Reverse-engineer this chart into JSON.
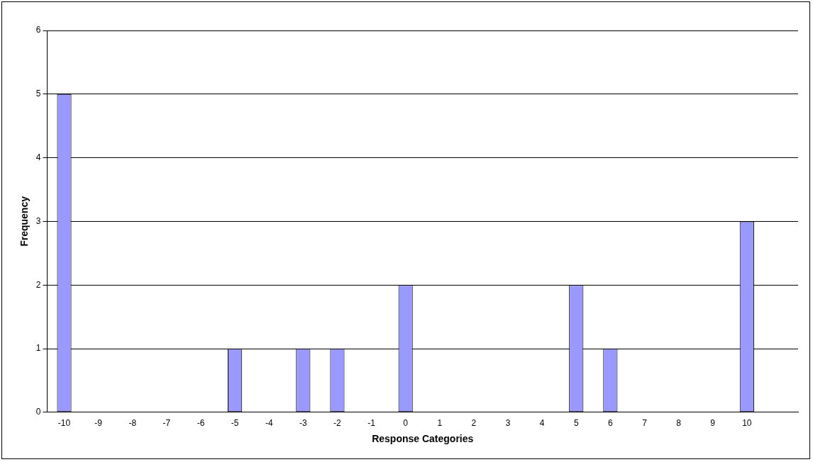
{
  "chart_data": {
    "type": "bar",
    "xlabel": "Response Categories",
    "ylabel": "Frequency",
    "categories": [
      "-10",
      "-9",
      "-8",
      "-7",
      "-6",
      "-5",
      "-4",
      "-3",
      "-2",
      "-1",
      "0",
      "1",
      "2",
      "3",
      "4",
      "5",
      "6",
      "7",
      "8",
      "9",
      "10",
      null
    ],
    "values": [
      5,
      0,
      0,
      0,
      0,
      1,
      0,
      1,
      1,
      0,
      2,
      0,
      0,
      0,
      0,
      2,
      1,
      0,
      0,
      0,
      3,
      0
    ],
    "color": "#9999ff",
    "ylim": [
      0,
      6
    ],
    "yticks": [
      0,
      1,
      2,
      3,
      4,
      5,
      6
    ],
    "grid": "y",
    "legend": false
  }
}
